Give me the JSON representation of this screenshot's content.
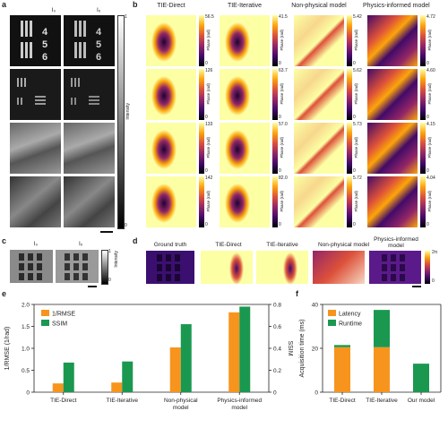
{
  "panels": {
    "a": {
      "label": "a",
      "cols": [
        "I₀",
        "Iₓ"
      ],
      "colorbar_label": "Intensity",
      "cb_max": "1",
      "cb_min": "0"
    },
    "b": {
      "label": "b",
      "cols": [
        "TIE-Direct",
        "TIE-Iterative",
        "Non-physical model",
        "Physics-informed model"
      ],
      "colorbar_label": "Phase (rad)",
      "rows": [
        {
          "maxes": [
            "56.5",
            "41.5",
            "5.42",
            "4.72"
          ]
        },
        {
          "maxes": [
            "126",
            "63.7",
            "5.62",
            "4.60"
          ]
        },
        {
          "maxes": [
            "133",
            "57.0",
            "5.73",
            "4.15"
          ]
        },
        {
          "maxes": [
            "142",
            "82.0",
            "5.72",
            "4.04"
          ]
        }
      ],
      "cb_min": "0"
    },
    "c": {
      "label": "c",
      "cols": [
        "I₀",
        "Iₓ"
      ],
      "colorbar_label": "Intensity",
      "cb_max": "1",
      "cb_min": "0"
    },
    "d": {
      "label": "d",
      "cols": [
        "Ground truth",
        "TIE-Direct",
        "TIE-Iterative",
        "Non-physical model",
        "Physics-informed model"
      ],
      "cb_max": "2π",
      "cb_min": "0"
    },
    "e": {
      "label": "e"
    },
    "f": {
      "label": "f"
    }
  },
  "colors": {
    "orange": "#f7941d",
    "green": "#1a9850"
  },
  "chart_data": [
    {
      "type": "bar",
      "categories": [
        "TIE-Direct",
        "TIE-Iterative",
        "Non-physical model",
        "Physics-informed model"
      ],
      "series": [
        {
          "name": "1/RMSE",
          "values": [
            0.2,
            0.22,
            1.02,
            1.82
          ]
        },
        {
          "name": "SSIM",
          "values": [
            0.27,
            0.28,
            0.62,
            0.78
          ]
        }
      ],
      "ylabel": "1/RMSE (1/rad)",
      "y2label": "SSIM",
      "ylim": [
        0,
        2.0
      ],
      "y2lim": [
        0,
        0.8
      ],
      "yticks": [
        "0",
        "0.5",
        "1.0",
        "1.5",
        "2.0"
      ],
      "y2ticks": [
        "0",
        "0.2",
        "0.4",
        "0.6",
        "0.8"
      ],
      "legend_position": "top-left"
    },
    {
      "type": "bar",
      "stacked": true,
      "categories": [
        "TIE-Direct",
        "TIE-Iterative",
        "Our model"
      ],
      "series": [
        {
          "name": "Latency",
          "values": [
            20.5,
            20.5,
            0
          ]
        },
        {
          "name": "Runtime",
          "values": [
            1,
            17,
            13
          ]
        }
      ],
      "ylabel": "Acquisition time (ms)",
      "ylim": [
        0,
        40
      ],
      "yticks": [
        "0",
        "20",
        "40"
      ],
      "legend_position": "top-left"
    }
  ]
}
